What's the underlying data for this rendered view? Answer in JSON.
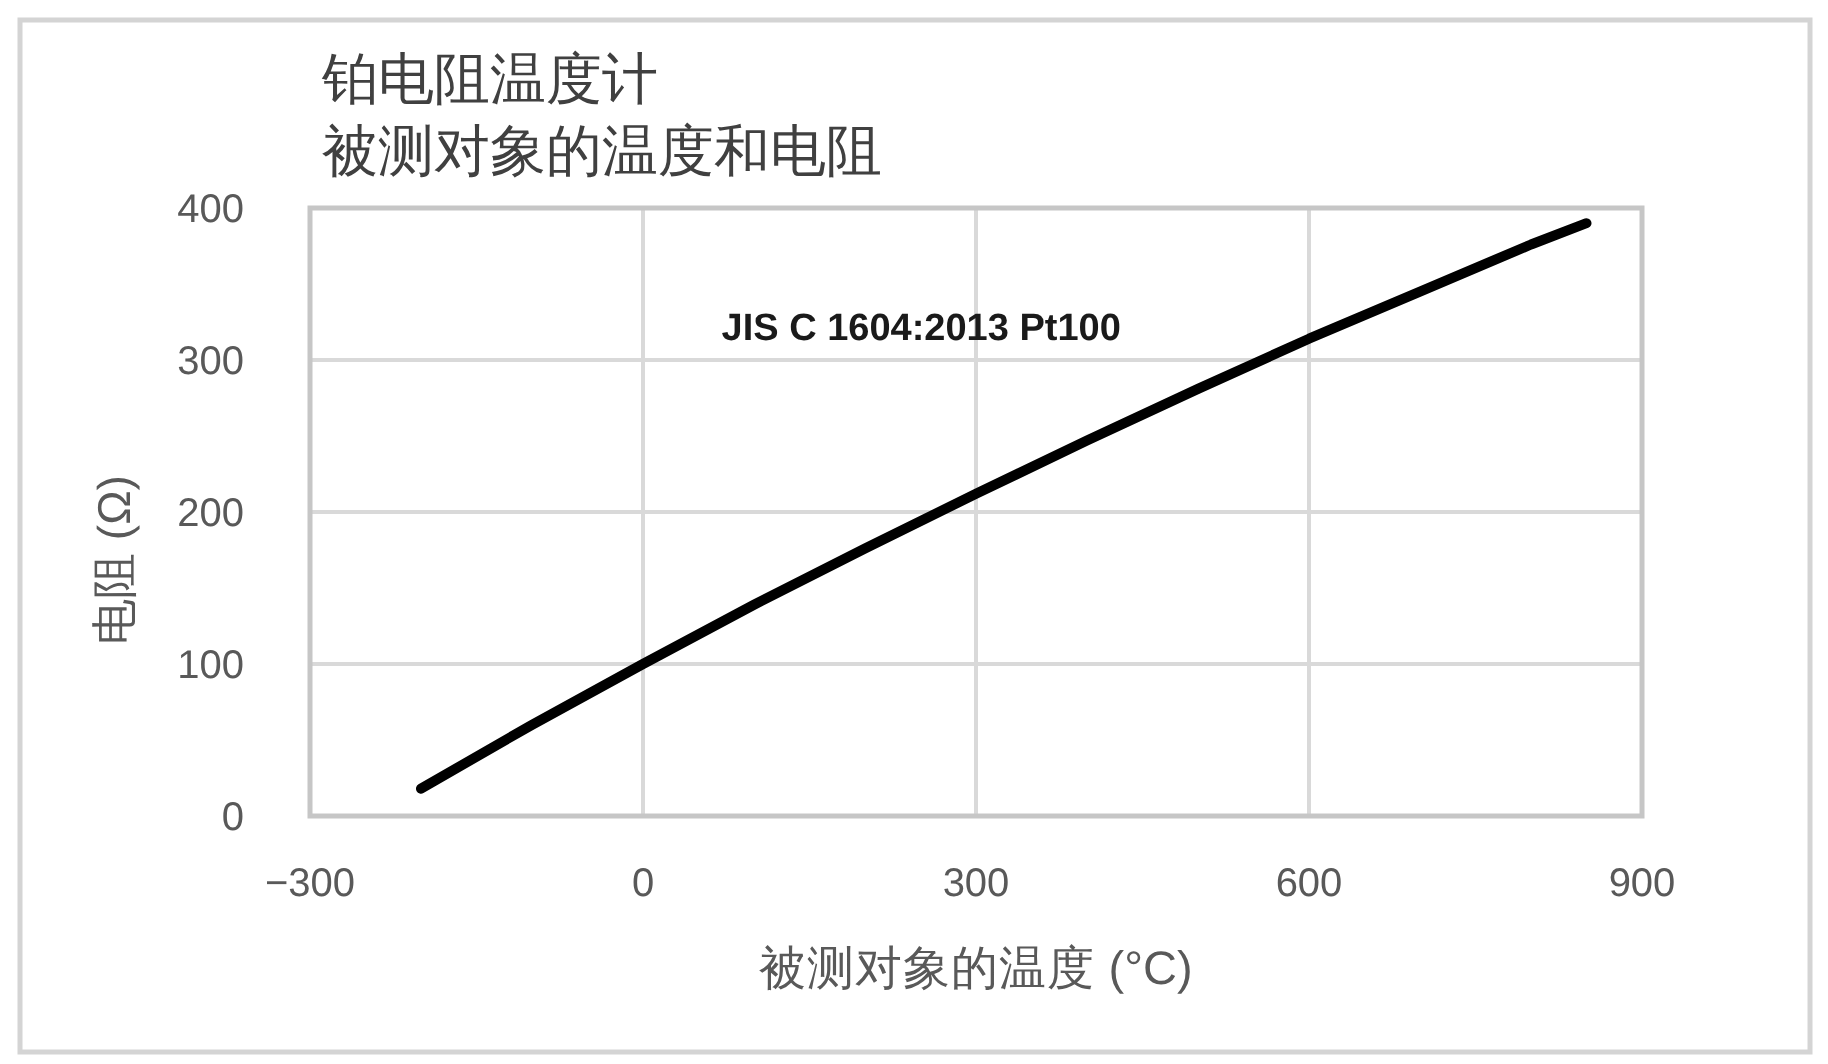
{
  "chart_data": {
    "type": "line",
    "title": "铂电阻温度计",
    "subtitle": "被测对象的温度和电阻",
    "xlabel": "被测对象的温度 (°C)",
    "ylabel": "电阻 (Ω)",
    "annotations": [
      "JIS C 1604:2013 Pt100"
    ],
    "x": [
      -200,
      -100,
      0,
      100,
      200,
      300,
      400,
      500,
      600,
      700,
      800,
      850
    ],
    "series": [
      {
        "color": "#000000",
        "values": [
          18,
          60,
          100,
          139,
          176,
          212,
          247,
          281,
          314,
          345,
          376,
          390
        ]
      }
    ],
    "xlim": [
      -300,
      900
    ],
    "ylim": [
      0,
      400
    ],
    "xticks": [
      {
        "value": -300,
        "label": "−300"
      },
      0,
      300,
      600,
      900
    ],
    "yticks": [
      0,
      100,
      200,
      300,
      400
    ],
    "grid": true
  }
}
